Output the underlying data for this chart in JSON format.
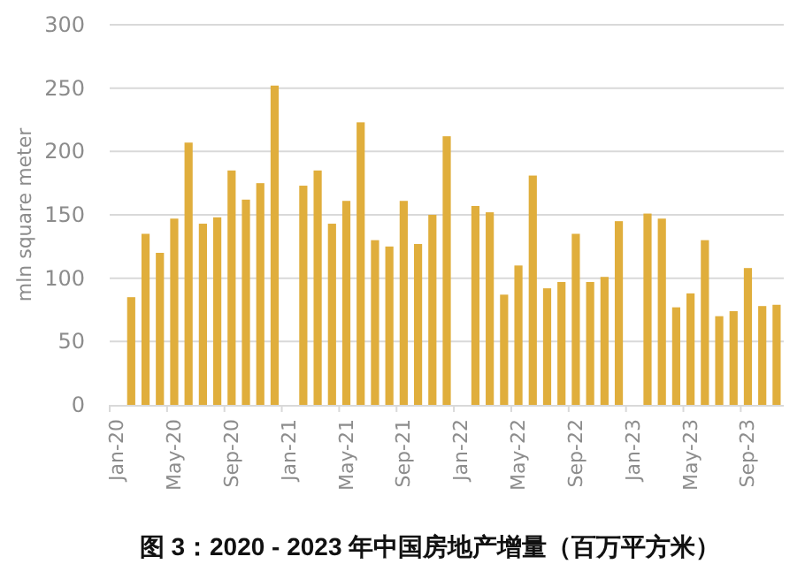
{
  "chart_data": {
    "type": "bar",
    "title": "图 3：2020 - 2023 年中国房地产增量（百万平方米）",
    "ylabel": "mln square meter",
    "categories": [
      "Jan-20",
      null,
      null,
      null,
      "May-20",
      null,
      null,
      null,
      "Sep-20",
      null,
      null,
      null,
      "Jan-21",
      null,
      null,
      null,
      "May-21",
      null,
      null,
      null,
      "Sep-21",
      null,
      null,
      null,
      "Jan-22",
      null,
      null,
      null,
      "May-22",
      null,
      null,
      null,
      "Sep-22",
      null,
      null,
      null,
      "Jan-23",
      null,
      null,
      null,
      "May-23",
      null,
      null,
      null,
      "Sep-23",
      null,
      null
    ],
    "values": [
      null,
      85,
      135,
      120,
      147,
      207,
      143,
      148,
      185,
      162,
      175,
      252,
      null,
      173,
      185,
      143,
      161,
      223,
      130,
      125,
      161,
      127,
      150,
      212,
      null,
      157,
      152,
      87,
      110,
      181,
      92,
      97,
      135,
      97,
      101,
      145,
      null,
      151,
      147,
      77,
      88,
      130,
      70,
      74,
      108,
      78,
      79
    ],
    "color": "#e0ae3c",
    "ylim": [
      0,
      300
    ],
    "yticks": [
      0,
      50,
      100,
      150,
      200,
      250,
      300
    ],
    "grid": "y"
  }
}
